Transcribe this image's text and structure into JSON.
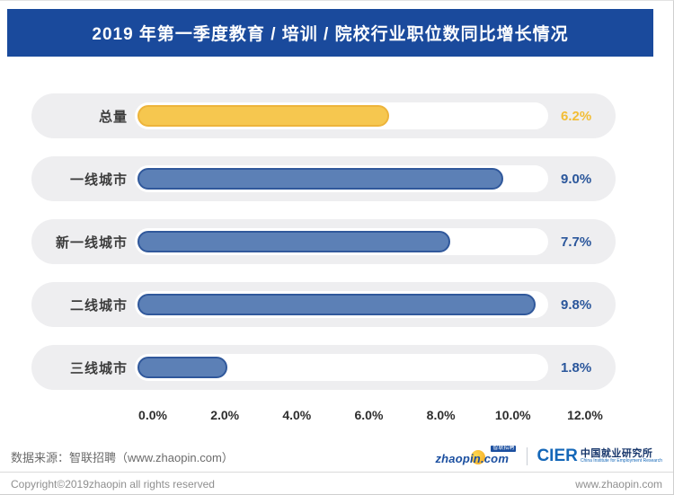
{
  "chart_data": {
    "type": "bar",
    "orientation": "horizontal",
    "title": "2019 年第一季度教育 / 培训 / 院校行业职位数同比增长情况",
    "categories": [
      "总量",
      "一线城市",
      "新一线城市",
      "二线城市",
      "三线城市"
    ],
    "values": [
      6.2,
      9.0,
      7.7,
      9.8,
      1.8
    ],
    "rows": [
      {
        "label": "总量",
        "value": 6.2,
        "value_label": "6.2%",
        "fill": "#F6C74F",
        "border": "#EDB43B",
        "value_color": "#F2BD35"
      },
      {
        "label": "一线城市",
        "value": 9.0,
        "value_label": "9.0%",
        "fill": "#5C80B6",
        "border": "#30589B",
        "value_color": "#2A569B"
      },
      {
        "label": "新一线城市",
        "value": 7.7,
        "value_label": "7.7%",
        "fill": "#5C80B6",
        "border": "#30589B",
        "value_color": "#2A569B"
      },
      {
        "label": "二线城市",
        "value": 9.8,
        "value_label": "9.8%",
        "fill": "#5C80B6",
        "border": "#30589B",
        "value_color": "#2A569B"
      },
      {
        "label": "三线城市",
        "value": 1.8,
        "value_label": "1.8%",
        "fill": "#5C80B6",
        "border": "#30589B",
        "value_color": "#2A569B"
      }
    ],
    "x_ticks": [
      "0.0%",
      "2.0%",
      "4.0%",
      "6.0%",
      "8.0%",
      "10.0%",
      "12.0%"
    ],
    "xlim": [
      0,
      12
    ],
    "grid": false,
    "legend": false
  },
  "header": {
    "banner_color": "#1A4A9C"
  },
  "footer": {
    "source": "数据来源：智联招聘（www.zhaopin.com）",
    "zhaopin_logo": {
      "text": "zhaopin.com",
      "tag": "智联招聘"
    },
    "cier_logo": {
      "acronym": "CIER",
      "name_cn": "中国就业研究所",
      "name_en": "China Institute for Employment Research"
    },
    "copyright": "Copyright©2019zhaopin all rights reserved",
    "website": "www.zhaopin.com"
  }
}
